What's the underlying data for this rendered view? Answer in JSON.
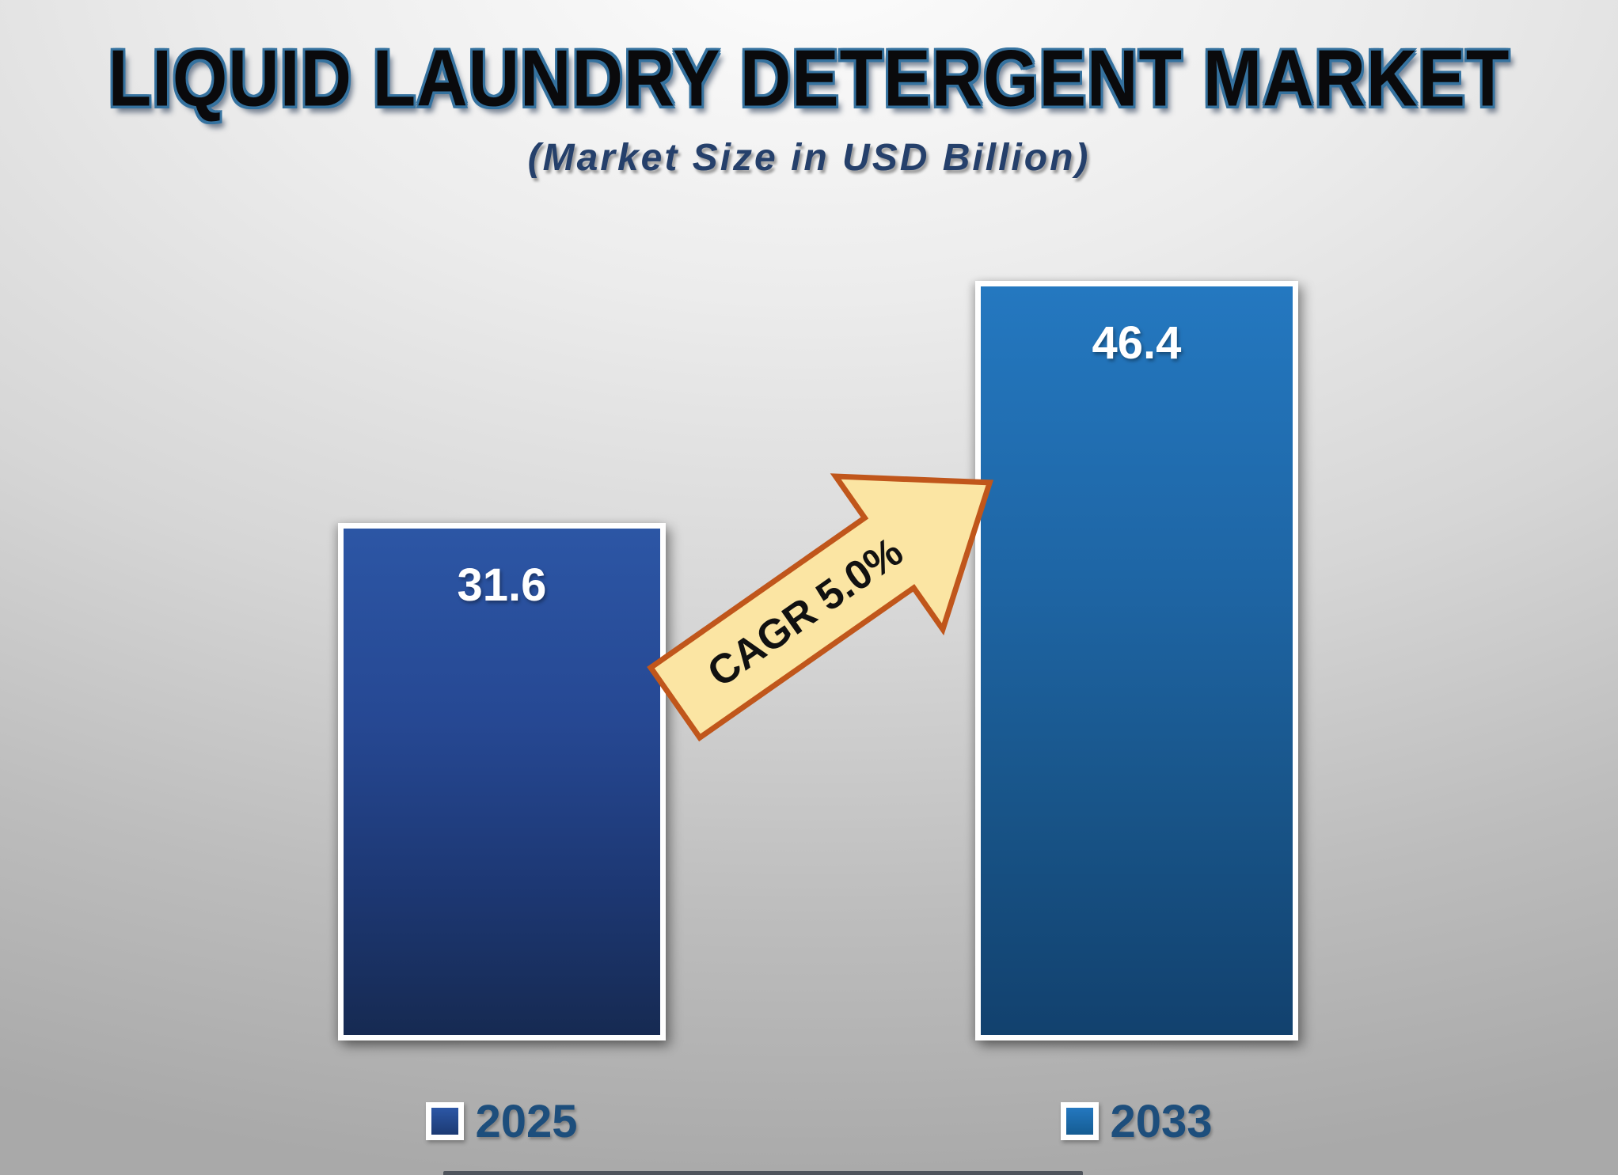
{
  "title": "LIQUID LAUNDRY DETERGENT MARKET",
  "subtitle": "(Market Size in USD Billion)",
  "chart_data": {
    "type": "bar",
    "title": "LIQUID LAUNDRY DETERGENT MARKET",
    "subtitle": "(Market Size in USD Billion)",
    "categories": [
      "2025",
      "2033"
    ],
    "values": [
      31.6,
      46.4
    ],
    "bar_labels": [
      "31.6",
      "46.4"
    ],
    "annotations": [
      "CAGR 5.0%"
    ],
    "legend_position": "bottom",
    "grid": false,
    "xlabel": "",
    "ylabel": ""
  },
  "bars": [
    {
      "year": "2025",
      "value": "31.6",
      "fill_top": "#2c56a5",
      "fill_bottom": "#162a52"
    },
    {
      "year": "2033",
      "value": "46.4",
      "fill_top": "#2478c0",
      "fill_bottom": "#12416e"
    }
  ],
  "arrow": {
    "label": "CAGR 5.0%",
    "fill": "#fbe5a3",
    "border": "#c0561b",
    "text_color": "#111111"
  },
  "legend": [
    {
      "label": "2025"
    },
    {
      "label": "2033"
    }
  ]
}
